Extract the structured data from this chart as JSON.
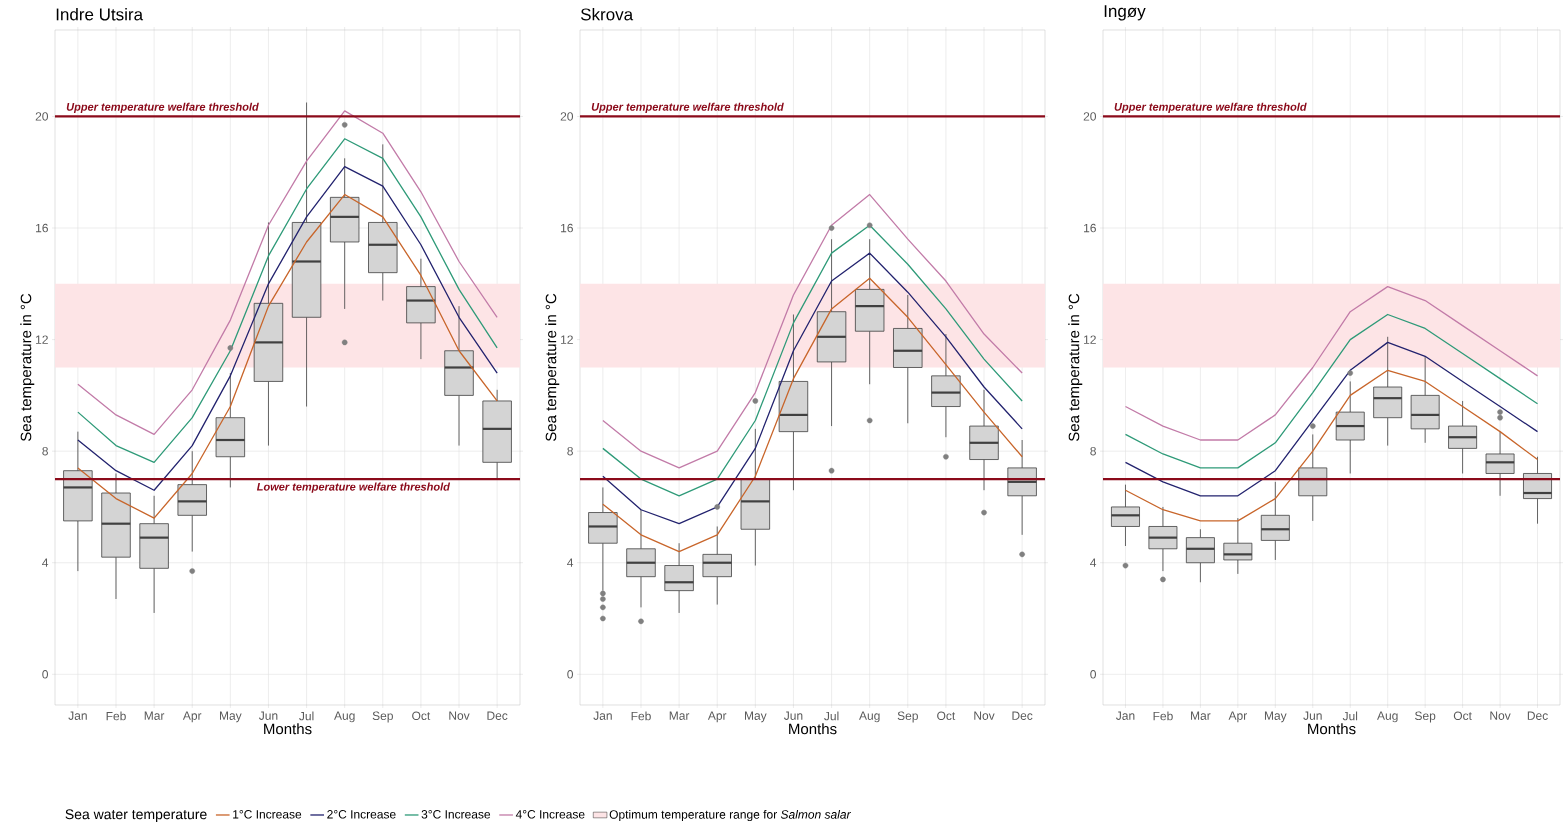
{
  "chart_data": [
    {
      "type": "box",
      "title": "Indre Utsira",
      "xlabel": "Months",
      "ylabel": "Sea temperature in °C",
      "categories": [
        "Jan",
        "Feb",
        "Mar",
        "Apr",
        "May",
        "Jun",
        "Jul",
        "Aug",
        "Sep",
        "Oct",
        "Nov",
        "Dec"
      ],
      "boxes": [
        {
          "low": 3.7,
          "q1": 5.5,
          "median": 6.7,
          "q3": 7.3,
          "high": 8.7
        },
        {
          "low": 2.7,
          "q1": 4.2,
          "median": 5.4,
          "q3": 6.5,
          "high": 7.2
        },
        {
          "low": 2.2,
          "q1": 3.8,
          "median": 4.9,
          "q3": 5.4,
          "high": 6.4
        },
        {
          "low": 4.4,
          "q1": 5.7,
          "median": 6.2,
          "q3": 6.8,
          "high": 8.0,
          "outliers": [
            3.7
          ]
        },
        {
          "low": 6.7,
          "q1": 7.8,
          "median": 8.4,
          "q3": 9.2,
          "high": 10.8,
          "outliers": [
            11.7
          ]
        },
        {
          "low": 8.2,
          "q1": 10.5,
          "median": 11.9,
          "q3": 13.3,
          "high": 16.2
        },
        {
          "low": 9.6,
          "q1": 12.8,
          "median": 14.8,
          "q3": 16.2,
          "high": 20.5
        },
        {
          "low": 13.1,
          "q1": 15.5,
          "median": 16.4,
          "q3": 17.1,
          "high": 18.5,
          "outliers": [
            19.7,
            11.9
          ]
        },
        {
          "low": 13.4,
          "q1": 14.4,
          "median": 15.4,
          "q3": 16.2,
          "high": 19.0
        },
        {
          "low": 11.3,
          "q1": 12.6,
          "median": 13.4,
          "q3": 13.9,
          "high": 14.9
        },
        {
          "low": 8.2,
          "q1": 10.0,
          "median": 11.0,
          "q3": 11.6,
          "high": 13.2
        },
        {
          "low": 7.0,
          "q1": 7.6,
          "median": 8.8,
          "q3": 9.8,
          "high": 10.2
        }
      ],
      "series": [
        {
          "name": "1°C Increase",
          "type": "line",
          "color": "#c8652a",
          "values": [
            7.4,
            6.3,
            5.6,
            7.2,
            9.6,
            13.2,
            15.5,
            17.2,
            16.4,
            14.3,
            11.6,
            9.8
          ]
        },
        {
          "name": "2°C Increase",
          "type": "line",
          "color": "#22226e",
          "values": [
            8.4,
            7.3,
            6.6,
            8.2,
            10.7,
            14.0,
            16.4,
            18.2,
            17.5,
            15.4,
            12.8,
            10.8
          ]
        },
        {
          "name": "3°C Increase",
          "type": "line",
          "color": "#2e9a78",
          "values": [
            9.4,
            8.2,
            7.6,
            9.2,
            11.6,
            15.0,
            17.4,
            19.2,
            18.5,
            16.4,
            13.8,
            11.7
          ]
        },
        {
          "name": "4°C Increase",
          "type": "line",
          "color": "#c27ba8",
          "values": [
            10.4,
            9.3,
            8.6,
            10.2,
            12.7,
            16.1,
            18.4,
            20.2,
            19.4,
            17.3,
            14.8,
            12.8
          ]
        }
      ],
      "ylim": [
        -1.1,
        23.1
      ],
      "yticks": [
        0,
        4,
        8,
        12,
        16,
        20
      ],
      "grid": true,
      "legend": "bottom",
      "legend_title": "Sea water temperature",
      "ref_lines": [
        {
          "axis": "y",
          "value": 20,
          "label": "Upper temperature welfare threshold",
          "color": "#8b0a1a"
        },
        {
          "axis": "y",
          "value": 7,
          "label": "Lower temperature welfare threshold",
          "color": "#8b0a1a"
        }
      ],
      "bands": [
        {
          "axis": "y",
          "from": 11,
          "to": 14,
          "label": "Optimum temperature range for *Salmon salar*",
          "color": "#fde4e6"
        }
      ]
    },
    {
      "type": "box",
      "title": "Skrova",
      "xlabel": "Months",
      "ylabel": "Sea temperature in °C",
      "categories": [
        "Jan",
        "Feb",
        "Mar",
        "Apr",
        "May",
        "Jun",
        "Jul",
        "Aug",
        "Sep",
        "Oct",
        "Nov",
        "Dec"
      ],
      "boxes": [
        {
          "low": 3.0,
          "q1": 4.7,
          "median": 5.3,
          "q3": 5.8,
          "high": 6.7,
          "outliers": [
            2.9,
            2.7,
            2.4,
            2.0
          ]
        },
        {
          "low": 2.4,
          "q1": 3.5,
          "median": 4.0,
          "q3": 4.5,
          "high": 5.9,
          "outliers": [
            1.9
          ]
        },
        {
          "low": 2.2,
          "q1": 3.0,
          "median": 3.3,
          "q3": 3.9,
          "high": 4.7
        },
        {
          "low": 2.5,
          "q1": 3.5,
          "median": 4.0,
          "q3": 4.3,
          "high": 5.3,
          "outliers": [
            6.0
          ]
        },
        {
          "low": 3.9,
          "q1": 5.2,
          "median": 6.2,
          "q3": 7.0,
          "high": 8.8,
          "outliers": [
            9.8
          ]
        },
        {
          "low": 6.6,
          "q1": 8.7,
          "median": 9.3,
          "q3": 10.5,
          "high": 12.9
        },
        {
          "low": 8.9,
          "q1": 11.2,
          "median": 12.1,
          "q3": 13.0,
          "high": 15.6,
          "outliers": [
            16.0,
            7.3
          ]
        },
        {
          "low": 10.4,
          "q1": 12.3,
          "median": 13.2,
          "q3": 13.8,
          "high": 15.6,
          "outliers": [
            16.1,
            9.1
          ]
        },
        {
          "low": 9.0,
          "q1": 11.0,
          "median": 11.6,
          "q3": 12.4,
          "high": 13.6
        },
        {
          "low": 8.5,
          "q1": 9.6,
          "median": 10.1,
          "q3": 10.7,
          "high": 12.2,
          "outliers": [
            7.8
          ]
        },
        {
          "low": 6.6,
          "q1": 7.7,
          "median": 8.3,
          "q3": 8.9,
          "high": 10.2,
          "outliers": [
            5.8
          ]
        },
        {
          "low": 5.0,
          "q1": 6.4,
          "median": 6.9,
          "q3": 7.4,
          "high": 8.4,
          "outliers": [
            4.3
          ]
        }
      ],
      "series": [
        {
          "type": "line",
          "color": "#c8652a",
          "values": [
            6.1,
            5.0,
            4.4,
            5.0,
            7.1,
            10.6,
            13.1,
            14.2,
            12.8,
            11.1,
            9.4,
            7.8
          ]
        },
        {
          "type": "line",
          "color": "#22226e",
          "values": [
            7.1,
            5.9,
            5.4,
            6.0,
            8.1,
            11.6,
            14.1,
            15.1,
            13.7,
            12.1,
            10.3,
            8.8
          ]
        },
        {
          "type": "line",
          "color": "#2e9a78",
          "values": [
            8.1,
            7.0,
            6.4,
            7.0,
            9.1,
            12.6,
            15.1,
            16.1,
            14.7,
            13.1,
            11.3,
            9.8
          ]
        },
        {
          "type": "line",
          "color": "#c27ba8",
          "values": [
            9.1,
            8.0,
            7.4,
            8.0,
            10.1,
            13.6,
            16.1,
            17.2,
            15.6,
            14.1,
            12.2,
            10.8
          ]
        }
      ],
      "ylim": [
        -1.1,
        23.1
      ],
      "yticks": [
        0,
        4,
        8,
        12,
        16,
        20
      ],
      "grid": true,
      "ref_lines": [
        {
          "axis": "y",
          "value": 20,
          "label": "Upper temperature welfare threshold",
          "color": "#8b0a1a"
        },
        {
          "axis": "y",
          "value": 7,
          "color": "#8b0a1a"
        }
      ],
      "bands": [
        {
          "axis": "y",
          "from": 11,
          "to": 14,
          "color": "#fde4e6"
        }
      ]
    },
    {
      "type": "box",
      "title": "Ingøy",
      "xlabel": "Months",
      "ylabel": "Sea temperature in °C",
      "categories": [
        "Jan",
        "Feb",
        "Mar",
        "Apr",
        "May",
        "Jun",
        "Jul",
        "Aug",
        "Sep",
        "Oct",
        "Nov",
        "Dec"
      ],
      "boxes": [
        {
          "low": 4.6,
          "q1": 5.3,
          "median": 5.7,
          "q3": 6.0,
          "high": 6.8,
          "outliers": [
            3.9
          ]
        },
        {
          "low": 3.7,
          "q1": 4.5,
          "median": 4.9,
          "q3": 5.3,
          "high": 6.0,
          "outliers": [
            3.4
          ]
        },
        {
          "low": 3.3,
          "q1": 4.0,
          "median": 4.5,
          "q3": 4.9,
          "high": 5.2
        },
        {
          "low": 3.6,
          "q1": 4.1,
          "median": 4.3,
          "q3": 4.7,
          "high": 5.6
        },
        {
          "low": 4.1,
          "q1": 4.8,
          "median": 5.2,
          "q3": 5.7,
          "high": 6.9
        },
        {
          "low": 5.5,
          "q1": 6.4,
          "median": 7.0,
          "q3": 7.4,
          "high": 8.6,
          "outliers": [
            8.9
          ]
        },
        {
          "low": 7.2,
          "q1": 8.4,
          "median": 8.9,
          "q3": 9.4,
          "high": 10.5,
          "outliers": [
            10.8
          ]
        },
        {
          "low": 8.2,
          "q1": 9.2,
          "median": 9.9,
          "q3": 10.3,
          "high": 12.1
        },
        {
          "low": 8.3,
          "q1": 8.8,
          "median": 9.3,
          "q3": 10.0,
          "high": 11.4
        },
        {
          "low": 7.2,
          "q1": 8.1,
          "median": 8.5,
          "q3": 8.9,
          "high": 9.8
        },
        {
          "low": 6.4,
          "q1": 7.2,
          "median": 7.6,
          "q3": 7.9,
          "high": 8.7,
          "outliers": [
            9.4,
            9.2
          ]
        },
        {
          "low": 5.4,
          "q1": 6.3,
          "median": 6.5,
          "q3": 7.2,
          "high": 7.8
        }
      ],
      "series": [
        {
          "type": "line",
          "color": "#c8652a",
          "values": [
            6.6,
            5.9,
            5.5,
            5.5,
            6.3,
            8.0,
            10.0,
            10.9,
            10.5,
            9.6,
            8.7,
            7.7
          ]
        },
        {
          "type": "line",
          "color": "#22226e",
          "values": [
            7.6,
            6.9,
            6.4,
            6.4,
            7.3,
            9.1,
            10.9,
            11.9,
            11.4,
            10.5,
            9.6,
            8.7
          ]
        },
        {
          "type": "line",
          "color": "#2e9a78",
          "values": [
            8.6,
            7.9,
            7.4,
            7.4,
            8.3,
            10.1,
            12.0,
            12.9,
            12.4,
            11.5,
            10.6,
            9.7
          ]
        },
        {
          "type": "line",
          "color": "#c27ba8",
          "values": [
            9.6,
            8.9,
            8.4,
            8.4,
            9.3,
            11.0,
            13.0,
            13.9,
            13.4,
            12.5,
            11.6,
            10.7
          ]
        }
      ],
      "ylim": [
        -1.1,
        23.1
      ],
      "yticks": [
        0,
        4,
        8,
        12,
        16,
        20
      ],
      "grid": true,
      "ref_lines": [
        {
          "axis": "y",
          "value": 20,
          "label": "Upper temperature welfare threshold",
          "color": "#8b0a1a"
        },
        {
          "axis": "y",
          "value": 7,
          "color": "#8b0a1a"
        }
      ],
      "bands": [
        {
          "axis": "y",
          "from": 11,
          "to": 14,
          "color": "#fde4e6"
        }
      ]
    }
  ]
}
